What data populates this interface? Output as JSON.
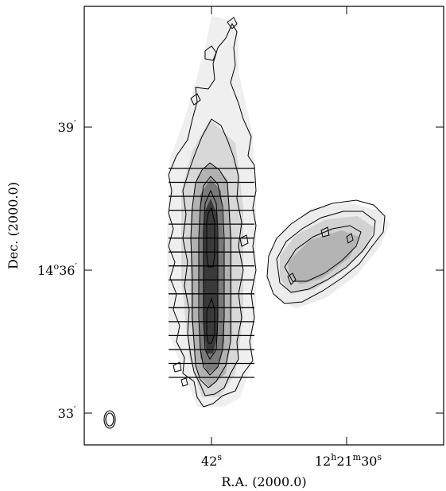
{
  "figure": {
    "x_axis_title": "R.A. (2000.0)",
    "y_axis_title": "Dec. (2000.0)",
    "x_ticks": [
      {
        "id": "x-tick-42s",
        "main": "42",
        "sup": "s"
      },
      {
        "id": "x-tick-12h21m30s",
        "parts": [
          {
            "t": "12",
            "sup": false
          },
          {
            "t": "h",
            "sup": true
          },
          {
            "t": "21",
            "sup": false
          },
          {
            "t": "m",
            "sup": true
          },
          {
            "t": "30",
            "sup": false
          },
          {
            "t": "s",
            "sup": true
          }
        ]
      }
    ],
    "y_ticks": [
      {
        "id": "y-tick-39",
        "main": "39",
        "sup": "′"
      },
      {
        "id": "y-tick-14d36",
        "parts": [
          {
            "t": "14",
            "sup": false
          },
          {
            "t": "o",
            "sup": true
          },
          {
            "t": "36",
            "sup": false
          },
          {
            "t": "′",
            "sup": true
          }
        ]
      },
      {
        "id": "y-tick-33",
        "main": "33",
        "sup": "′"
      }
    ],
    "slice_count": 16,
    "colors": {
      "frame": "#000000",
      "contour": "#000000",
      "grey_lightest": "#ececec",
      "grey_light": "#d2d2d2",
      "grey_mid": "#a8a8a8",
      "grey_dark": "#6e6e6e",
      "grey_darkest": "#2e2e2e"
    }
  }
}
